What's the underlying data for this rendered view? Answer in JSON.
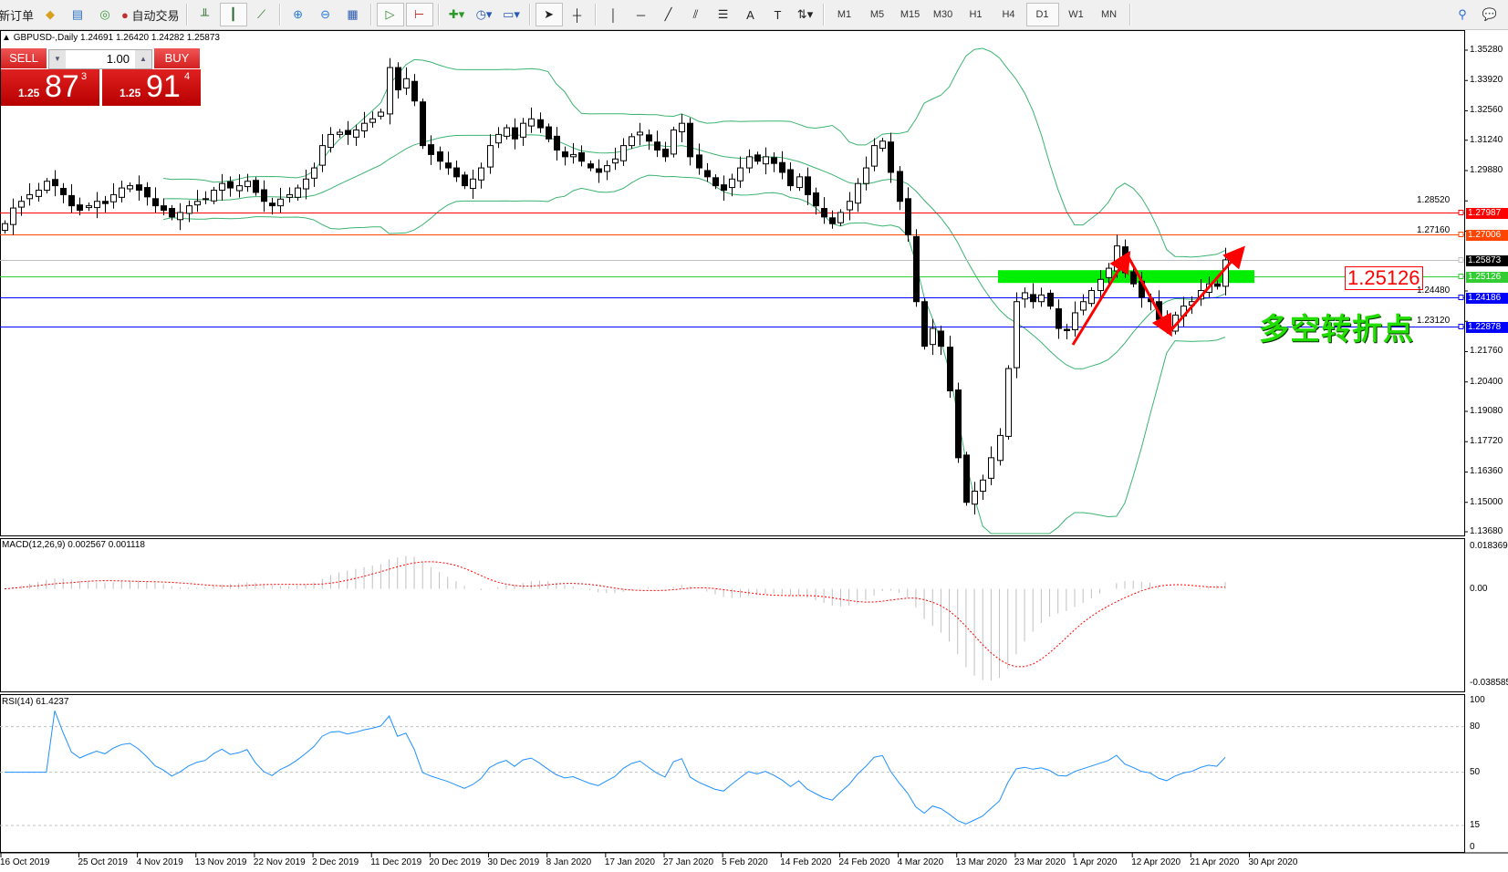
{
  "toolbar": {
    "new_order": "新订单",
    "auto_trading": "自动交易",
    "timeframes": [
      "M1",
      "M5",
      "M15",
      "M30",
      "H1",
      "H4",
      "D1",
      "W1",
      "MN"
    ],
    "active_timeframe": "D1"
  },
  "chart": {
    "header": "GBPUSD-,Daily  1.24691 1.26420 1.24282 1.25873",
    "symbol": "GBPUSD-",
    "period": "Daily",
    "ohlc": {
      "open": 1.24691,
      "high": 1.2642,
      "low": 1.24282,
      "close": 1.25873
    },
    "price_axis": [
      "1.35280",
      "1.33920",
      "1.32560",
      "1.31240",
      "1.29880",
      "1.28520",
      "1.27160",
      "1.24480",
      "1.23120",
      "1.21760",
      "1.20400",
      "1.19080",
      "1.17720",
      "1.16360",
      "1.15000",
      "1.13680"
    ],
    "price_range": [
      1.1368,
      1.3528
    ],
    "levels": [
      {
        "price": "1.27987",
        "color": "#ff0000"
      },
      {
        "price": "1.27006",
        "color": "#ff4500"
      },
      {
        "price": "1.25873",
        "color": "#000000",
        "line": "#c0c0c0"
      },
      {
        "price": "1.25126",
        "color": "#32cd32"
      },
      {
        "price": "1.24186",
        "color": "#0000ff"
      },
      {
        "price": "1.22878",
        "color": "#0000ff"
      }
    ],
    "annotation_price": "1.25126",
    "annotation_text": "多空转折点",
    "closes": [
      1.275,
      1.282,
      1.285,
      1.288,
      1.29,
      1.294,
      1.292,
      1.288,
      1.283,
      1.281,
      1.283,
      1.285,
      1.284,
      1.288,
      1.291,
      1.292,
      1.29,
      1.287,
      1.283,
      1.281,
      1.278,
      1.28,
      1.283,
      1.285,
      1.286,
      1.29,
      1.293,
      1.291,
      1.292,
      1.294,
      1.289,
      1.285,
      1.283,
      1.286,
      1.288,
      1.291,
      1.295,
      1.3,
      1.31,
      1.315,
      1.316,
      1.315,
      1.317,
      1.32,
      1.322,
      1.325,
      1.345,
      1.335,
      1.34,
      1.33,
      1.31,
      1.306,
      1.303,
      1.3,
      1.296,
      1.292,
      1.295,
      1.3,
      1.31,
      1.315,
      1.318,
      1.313,
      1.32,
      1.322,
      1.318,
      1.313,
      1.308,
      1.305,
      1.306,
      1.303,
      1.3,
      1.298,
      1.301,
      1.304,
      1.31,
      1.314,
      1.316,
      1.312,
      1.308,
      1.305,
      1.317,
      1.32,
      1.305,
      1.3,
      1.296,
      1.292,
      1.29,
      1.295,
      1.3,
      1.305,
      1.303,
      1.305,
      1.302,
      1.298,
      1.292,
      1.296,
      1.288,
      1.283,
      1.278,
      1.275,
      1.28,
      1.285,
      1.293,
      1.3,
      1.31,
      1.312,
      1.298,
      1.285,
      1.27,
      1.24,
      1.22,
      1.228,
      1.22,
      1.2,
      1.17,
      1.15,
      1.155,
      1.16,
      1.17,
      1.18,
      1.21,
      1.24,
      1.244,
      1.24,
      1.243,
      1.238,
      1.228,
      1.227,
      1.235,
      1.24,
      1.245,
      1.25,
      1.255,
      1.265,
      1.253,
      1.248,
      1.242,
      1.24,
      1.232,
      1.228,
      1.234,
      1.238,
      1.24,
      1.245,
      1.248,
      1.2469,
      1.2587
    ],
    "bollinger_color": "#3cb371",
    "candle_up_color": "#ffffff",
    "candle_down_color": "#000000"
  },
  "macd": {
    "label": "MACD(12,26,9) 0.002567 0.001118",
    "axis": [
      "0.018369",
      "0.00",
      "-0.038585"
    ],
    "range": [
      -0.038585,
      0.018369
    ],
    "signal_color": "#ff0000",
    "histogram_color": "#c0c0c0"
  },
  "rsi": {
    "label": "RSI(14) 61.4237",
    "axis": [
      "100",
      "80",
      "50",
      "15",
      "0"
    ],
    "line_color": "#1e90ff"
  },
  "date_axis": [
    "16 Oct 2019",
    "25 Oct 2019",
    "4 Nov 2019",
    "13 Nov 2019",
    "22 Nov 2019",
    "2 Dec 2019",
    "11 Dec 2019",
    "20 Dec 2019",
    "30 Dec 2019",
    "8 Jan 2020",
    "17 Jan 2020",
    "27 Jan 2020",
    "5 Feb 2020",
    "14 Feb 2020",
    "24 Feb 2020",
    "4 Mar 2020",
    "13 Mar 2020",
    "23 Mar 2020",
    "1 Apr 2020",
    "12 Apr 2020",
    "21 Apr 2020",
    "30 Apr 2020"
  ],
  "trade_panel": {
    "sell_label": "SELL",
    "buy_label": "BUY",
    "volume": "1.00",
    "sell_prefix": "1.25",
    "sell_big": "87",
    "sell_sup": "3",
    "buy_prefix": "1.25",
    "buy_big": "91",
    "buy_sup": "4"
  }
}
